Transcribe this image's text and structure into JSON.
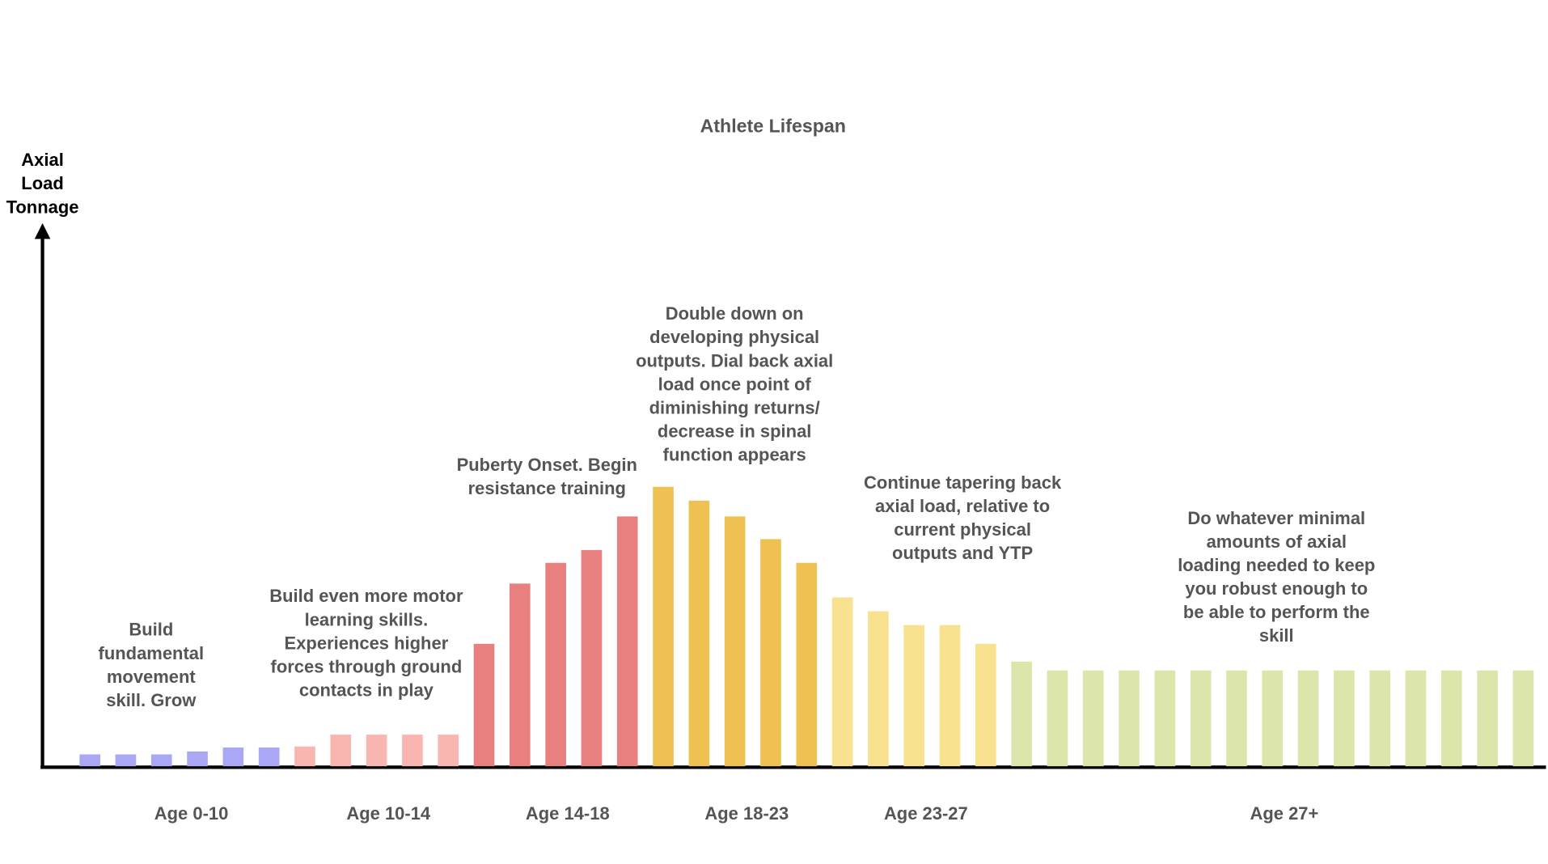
{
  "chart_data": {
    "type": "bar",
    "title": "Athlete Lifespan",
    "y_label_lines": [
      "Axial",
      "Load",
      "Tonnage"
    ],
    "ylim": [
      0,
      550
    ],
    "series": [
      {
        "name": "Age 0-10",
        "color": "#aaa7f5",
        "values": [
          12,
          12,
          12,
          15,
          19,
          19
        ]
      },
      {
        "name": "Age 10-14",
        "color": "#f9b6b1",
        "values": [
          20,
          32,
          32,
          32,
          32
        ]
      },
      {
        "name": "Age 14-18",
        "color": "#e98080",
        "values": [
          124,
          185,
          206,
          219,
          253
        ]
      },
      {
        "name": "Age 18-23",
        "color": "#efc152",
        "values": [
          283,
          269,
          253,
          230,
          206
        ]
      },
      {
        "name": "Age 23-27",
        "color": "#f8e18f",
        "values": [
          171,
          157,
          143,
          143,
          124
        ]
      },
      {
        "name": "Age 27+",
        "color": "#dde6aa",
        "values": [
          106,
          97,
          97,
          97,
          97,
          97,
          97,
          97,
          97,
          97,
          97,
          97,
          97,
          97,
          97
        ]
      }
    ],
    "annotations": [
      {
        "lines": [
          "Build",
          "fundamental",
          "movement",
          "skill. Grow"
        ]
      },
      {
        "lines": [
          "Build even more motor",
          "learning skills.",
          "Experiences higher",
          "forces through ground",
          "contacts in play"
        ]
      },
      {
        "lines": [
          "Puberty Onset. Begin",
          "resistance training"
        ]
      },
      {
        "lines": [
          "Double down on",
          "developing physical",
          "outputs. Dial back axial",
          "load once point of",
          "diminishing returns/",
          "decrease in spinal",
          "function appears"
        ]
      },
      {
        "lines": [
          "Continue tapering back",
          "axial load, relative to",
          "current physical",
          "outputs and YTP"
        ]
      },
      {
        "lines": [
          "Do whatever minimal",
          "amounts of axial",
          "loading needed to keep",
          "you robust enough to",
          "be able to perform the",
          "skill"
        ]
      }
    ]
  }
}
